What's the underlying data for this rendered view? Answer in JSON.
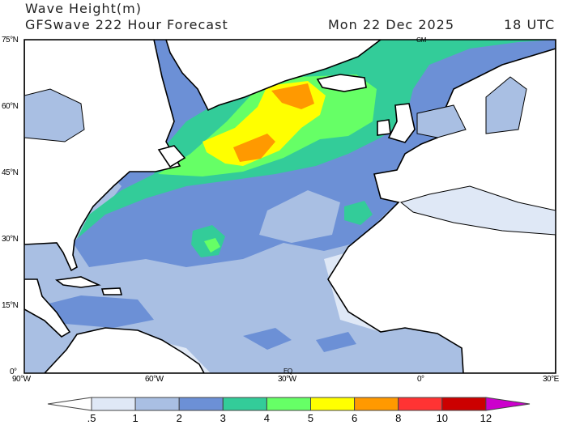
{
  "header": {
    "title": "Wave Height(m)",
    "subtitle": "GFSwave 222 Hour Forecast",
    "date": "Mon 22 Dec 2025",
    "time": "18 UTC"
  },
  "map": {
    "region": "North Atlantic",
    "lat_labels": [
      "75°N",
      "60°N",
      "45°N",
      "30°N",
      "15°N",
      "0°"
    ],
    "lon_labels": [
      "90°W",
      "60°W",
      "30°W",
      "0°",
      "30°E"
    ],
    "markers": {
      "greenwich": "GM",
      "equator": "EQ"
    }
  },
  "colorbar": {
    "unit": "m",
    "ticks": [
      ".5",
      "1",
      "2",
      "3",
      "4",
      "5",
      "6",
      "8",
      "10",
      "12"
    ],
    "colors": [
      "#ffffff",
      "#dfe8f6",
      "#a9bfe3",
      "#6c90d6",
      "#33cc99",
      "#66ff66",
      "#ffff00",
      "#ff9900",
      "#ff3333",
      "#cc0000",
      "#cc00cc"
    ]
  }
}
